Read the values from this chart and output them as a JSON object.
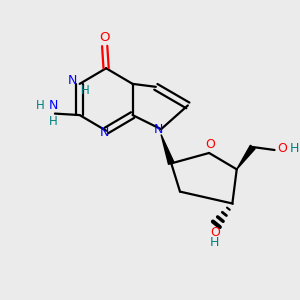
{
  "bg_color": "#ebebeb",
  "bond_color": "#000000",
  "N_color": "#0000ff",
  "O_color": "#ff0000",
  "H_color": "#008080",
  "figsize": [
    3.0,
    3.0
  ],
  "dpi": 100,
  "xlim": [
    0,
    10
  ],
  "ylim": [
    0,
    10
  ]
}
